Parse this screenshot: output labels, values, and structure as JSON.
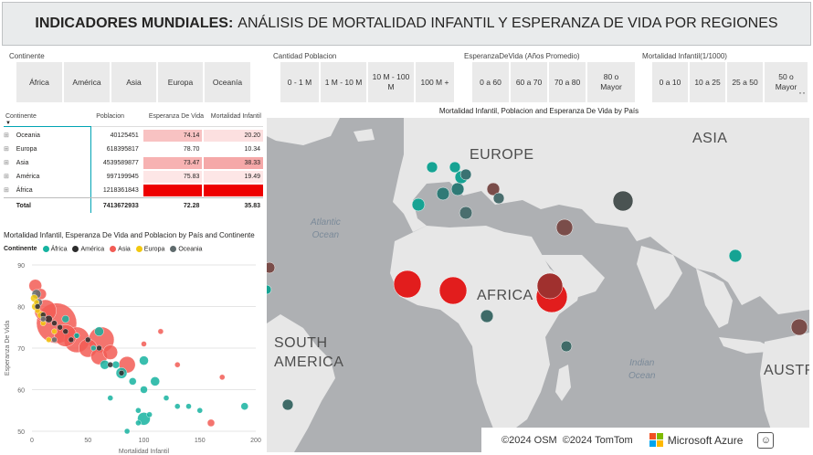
{
  "header": {
    "title_bold": "INDICADORES MUNDIALES:",
    "title_rest": "ANÁLISIS DE MORTALIDAD INFANTIL Y ESPERANZA DE VIDA POR REGIONES"
  },
  "slicers": {
    "continente": {
      "title": "Continente",
      "items": [
        "África",
        "América",
        "Asia",
        "Europa",
        "Oceanía"
      ]
    },
    "poblacion": {
      "title": "Cantidad Poblacion",
      "items": [
        "0 - 1 M",
        "1 M - 10 M",
        "10 M - 100 M",
        "100 M +"
      ]
    },
    "esperanza": {
      "title": "EsperanzaDeVida (Años Promedio)",
      "items": [
        "0 a 60",
        "60 a 70",
        "70 a 80",
        "80 o Mayor"
      ]
    },
    "mortalidad": {
      "title": "Mortalidad Infantil(1/1000)",
      "items": [
        "0 a 10",
        "10 a 25",
        "25 a 50",
        "50 o Mayor"
      ]
    },
    "more": "··"
  },
  "table": {
    "headers": [
      "Continente",
      "Poblacion",
      "Esperanza De Vida",
      "Mortalidad Infantil"
    ],
    "rows": [
      {
        "continente": "Oceania",
        "poblacion": "40125451",
        "esperanza": "74.14",
        "mortalidad": "20.20",
        "esp_color": "#f8c2c2",
        "mort_color": "#fce0e0"
      },
      {
        "continente": "Europa",
        "poblacion": "618395817",
        "esperanza": "78.70",
        "mortalidad": "10.34",
        "esp_color": "#ffffff",
        "mort_color": "#ffffff"
      },
      {
        "continente": "Asia",
        "poblacion": "4539589877",
        "esperanza": "73.47",
        "mortalidad": "38.33",
        "esp_color": "#f7b2b2",
        "mort_color": "#f5a8a8"
      },
      {
        "continente": "América",
        "poblacion": "997199945",
        "esperanza": "75.83",
        "mortalidad": "19.49",
        "esp_color": "#fde6e6",
        "mort_color": "#fde6e6"
      },
      {
        "continente": "África",
        "poblacion": "1218361843",
        "esperanza": "",
        "mortalidad": "",
        "esp_color": "#ee0000",
        "mort_color": "#ee0000"
      }
    ],
    "total": {
      "label": "Total",
      "poblacion": "7413672933",
      "esperanza": "72.28",
      "mortalidad": "35.83"
    }
  },
  "scatter": {
    "title": "Mortalidad Infantil, Esperanza De Vida and Poblacion by País and Continente",
    "legend_title": "Continente",
    "legend": [
      {
        "name": "África",
        "color": "#16b3a0"
      },
      {
        "name": "América",
        "color": "#2c2c2c"
      },
      {
        "name": "Asia",
        "color": "#f25c55"
      },
      {
        "name": "Europa",
        "color": "#f2c80f"
      },
      {
        "name": "Oceania",
        "color": "#5f6b6d"
      }
    ],
    "xlabel": "Mortalidad Infantil",
    "ylabel": "Esperanza De Vida",
    "xticks": [
      "0",
      "50",
      "100",
      "150",
      "200"
    ],
    "yticks": [
      "90",
      "80",
      "70",
      "60",
      "50"
    ]
  },
  "chart_data": {
    "type": "scatter",
    "title": "Mortalidad Infantil, Esperanza De Vida and Poblacion by País and Continente",
    "xlabel": "Mortalidad Infantil",
    "ylabel": "Esperanza De Vida",
    "xlim": [
      0,
      200
    ],
    "ylim": [
      50,
      90
    ],
    "series": [
      {
        "name": "Asia",
        "color": "#f25c55",
        "points": [
          [
            3,
            85,
            7
          ],
          [
            8,
            83,
            6
          ],
          [
            12,
            79,
            12
          ],
          [
            22,
            76,
            22
          ],
          [
            30,
            73,
            12
          ],
          [
            40,
            72,
            14
          ],
          [
            50,
            70,
            10
          ],
          [
            60,
            68,
            9
          ],
          [
            62,
            72,
            14
          ],
          [
            70,
            69,
            8
          ],
          [
            85,
            66,
            9
          ],
          [
            100,
            71,
            3
          ],
          [
            160,
            52,
            4
          ],
          [
            170,
            63,
            3
          ],
          [
            115,
            74,
            3
          ],
          [
            130,
            66,
            3
          ]
        ]
      },
      {
        "name": "Europa",
        "color": "#f2c80f",
        "points": [
          [
            2,
            82,
            4
          ],
          [
            3,
            80,
            4
          ],
          [
            4,
            81,
            3
          ],
          [
            5,
            79,
            3
          ],
          [
            8,
            78,
            4
          ],
          [
            10,
            76,
            3
          ],
          [
            20,
            74,
            3
          ],
          [
            15,
            72,
            3
          ]
        ]
      },
      {
        "name": "América",
        "color": "#2c2c2c",
        "points": [
          [
            5,
            80,
            3
          ],
          [
            10,
            78,
            3
          ],
          [
            15,
            77,
            4
          ],
          [
            20,
            76,
            3
          ],
          [
            25,
            75,
            3
          ],
          [
            30,
            74,
            3
          ],
          [
            35,
            72,
            3
          ],
          [
            40,
            73,
            3
          ],
          [
            60,
            70,
            3
          ],
          [
            70,
            66,
            3
          ],
          [
            80,
            64,
            3
          ],
          [
            50,
            72,
            3
          ]
        ]
      },
      {
        "name": "Oceania",
        "color": "#5f6b6d",
        "points": [
          [
            4,
            83,
            5
          ],
          [
            6,
            81,
            4
          ],
          [
            10,
            77,
            3
          ],
          [
            20,
            72,
            3
          ]
        ]
      },
      {
        "name": "África",
        "color": "#16b3a0",
        "points": [
          [
            30,
            77,
            4
          ],
          [
            40,
            73,
            3
          ],
          [
            55,
            70,
            3
          ],
          [
            60,
            74,
            5
          ],
          [
            65,
            66,
            5
          ],
          [
            75,
            66,
            4
          ],
          [
            70,
            58,
            3
          ],
          [
            80,
            64,
            6
          ],
          [
            90,
            62,
            4
          ],
          [
            95,
            55,
            3
          ],
          [
            100,
            60,
            4
          ],
          [
            100,
            53,
            7
          ],
          [
            110,
            62,
            5
          ],
          [
            100,
            67,
            5
          ],
          [
            120,
            58,
            3
          ],
          [
            130,
            56,
            3
          ],
          [
            140,
            56,
            3
          ],
          [
            150,
            55,
            3
          ],
          [
            190,
            56,
            4
          ],
          [
            85,
            50,
            3
          ],
          [
            95,
            52,
            3
          ],
          [
            105,
            54,
            3
          ]
        ]
      }
    ]
  },
  "map": {
    "title": "Mortalidad Infantil, Poblacion and Esperanza De Vida by País",
    "labels": {
      "europe": "EUROPE",
      "asia": "ASIA",
      "africa": "AFRICA",
      "south_america": "SOUTH\nAMERICA",
      "australia": "AUSTR"
    },
    "seas": {
      "atlantic": "Atlantic\nOcean",
      "indian": "Indian\nOcean"
    },
    "attribution": {
      "osm": "©2024 OSM",
      "tomtom": "©2024 TomTom",
      "azure": "Microsoft Azure"
    }
  }
}
